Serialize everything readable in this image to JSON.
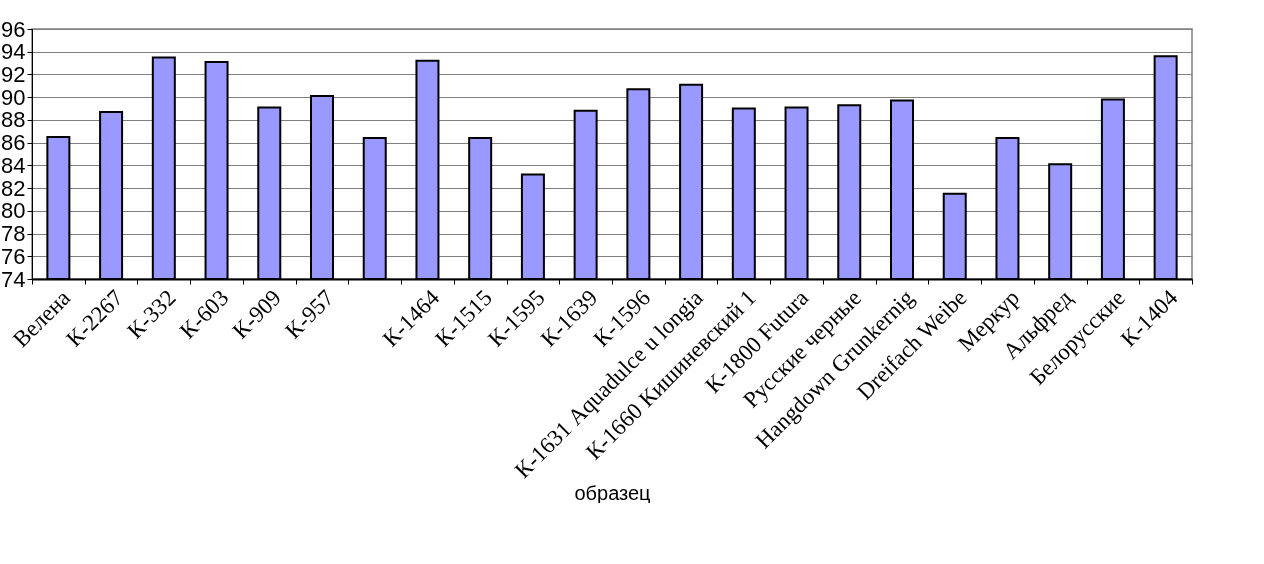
{
  "chart_data": {
    "type": "bar",
    "xlabel": "образец",
    "categories": [
      "Велена",
      "К-2267",
      "К-332",
      "К-603",
      "К-909",
      "К-957",
      null,
      "К-1464",
      "К-1515",
      "К-1595",
      "К-1639",
      "К-1596",
      "К-1631 Aquadulce u longia",
      "К-1660 Кишиневский 1",
      "К-1800 Futura",
      "Русские черные",
      "Hangdown Grunkernig",
      "Dreifach Weibe",
      "Меркур",
      "Альфред",
      "Белорусские",
      "К-1404"
    ],
    "values": [
      86.5,
      88.7,
      93.5,
      93.1,
      89.1,
      90.1,
      86.4,
      93.2,
      86.4,
      83.2,
      88.8,
      90.7,
      91.1,
      89.0,
      89.1,
      89.3,
      89.7,
      81.5,
      86.4,
      84.1,
      89.8,
      93.6
    ],
    "color": "#9999ff",
    "ylim": [
      74,
      96
    ],
    "yticks": [
      74,
      76,
      78,
      80,
      82,
      84,
      86,
      88,
      90,
      92,
      94,
      96
    ],
    "grid": true
  }
}
